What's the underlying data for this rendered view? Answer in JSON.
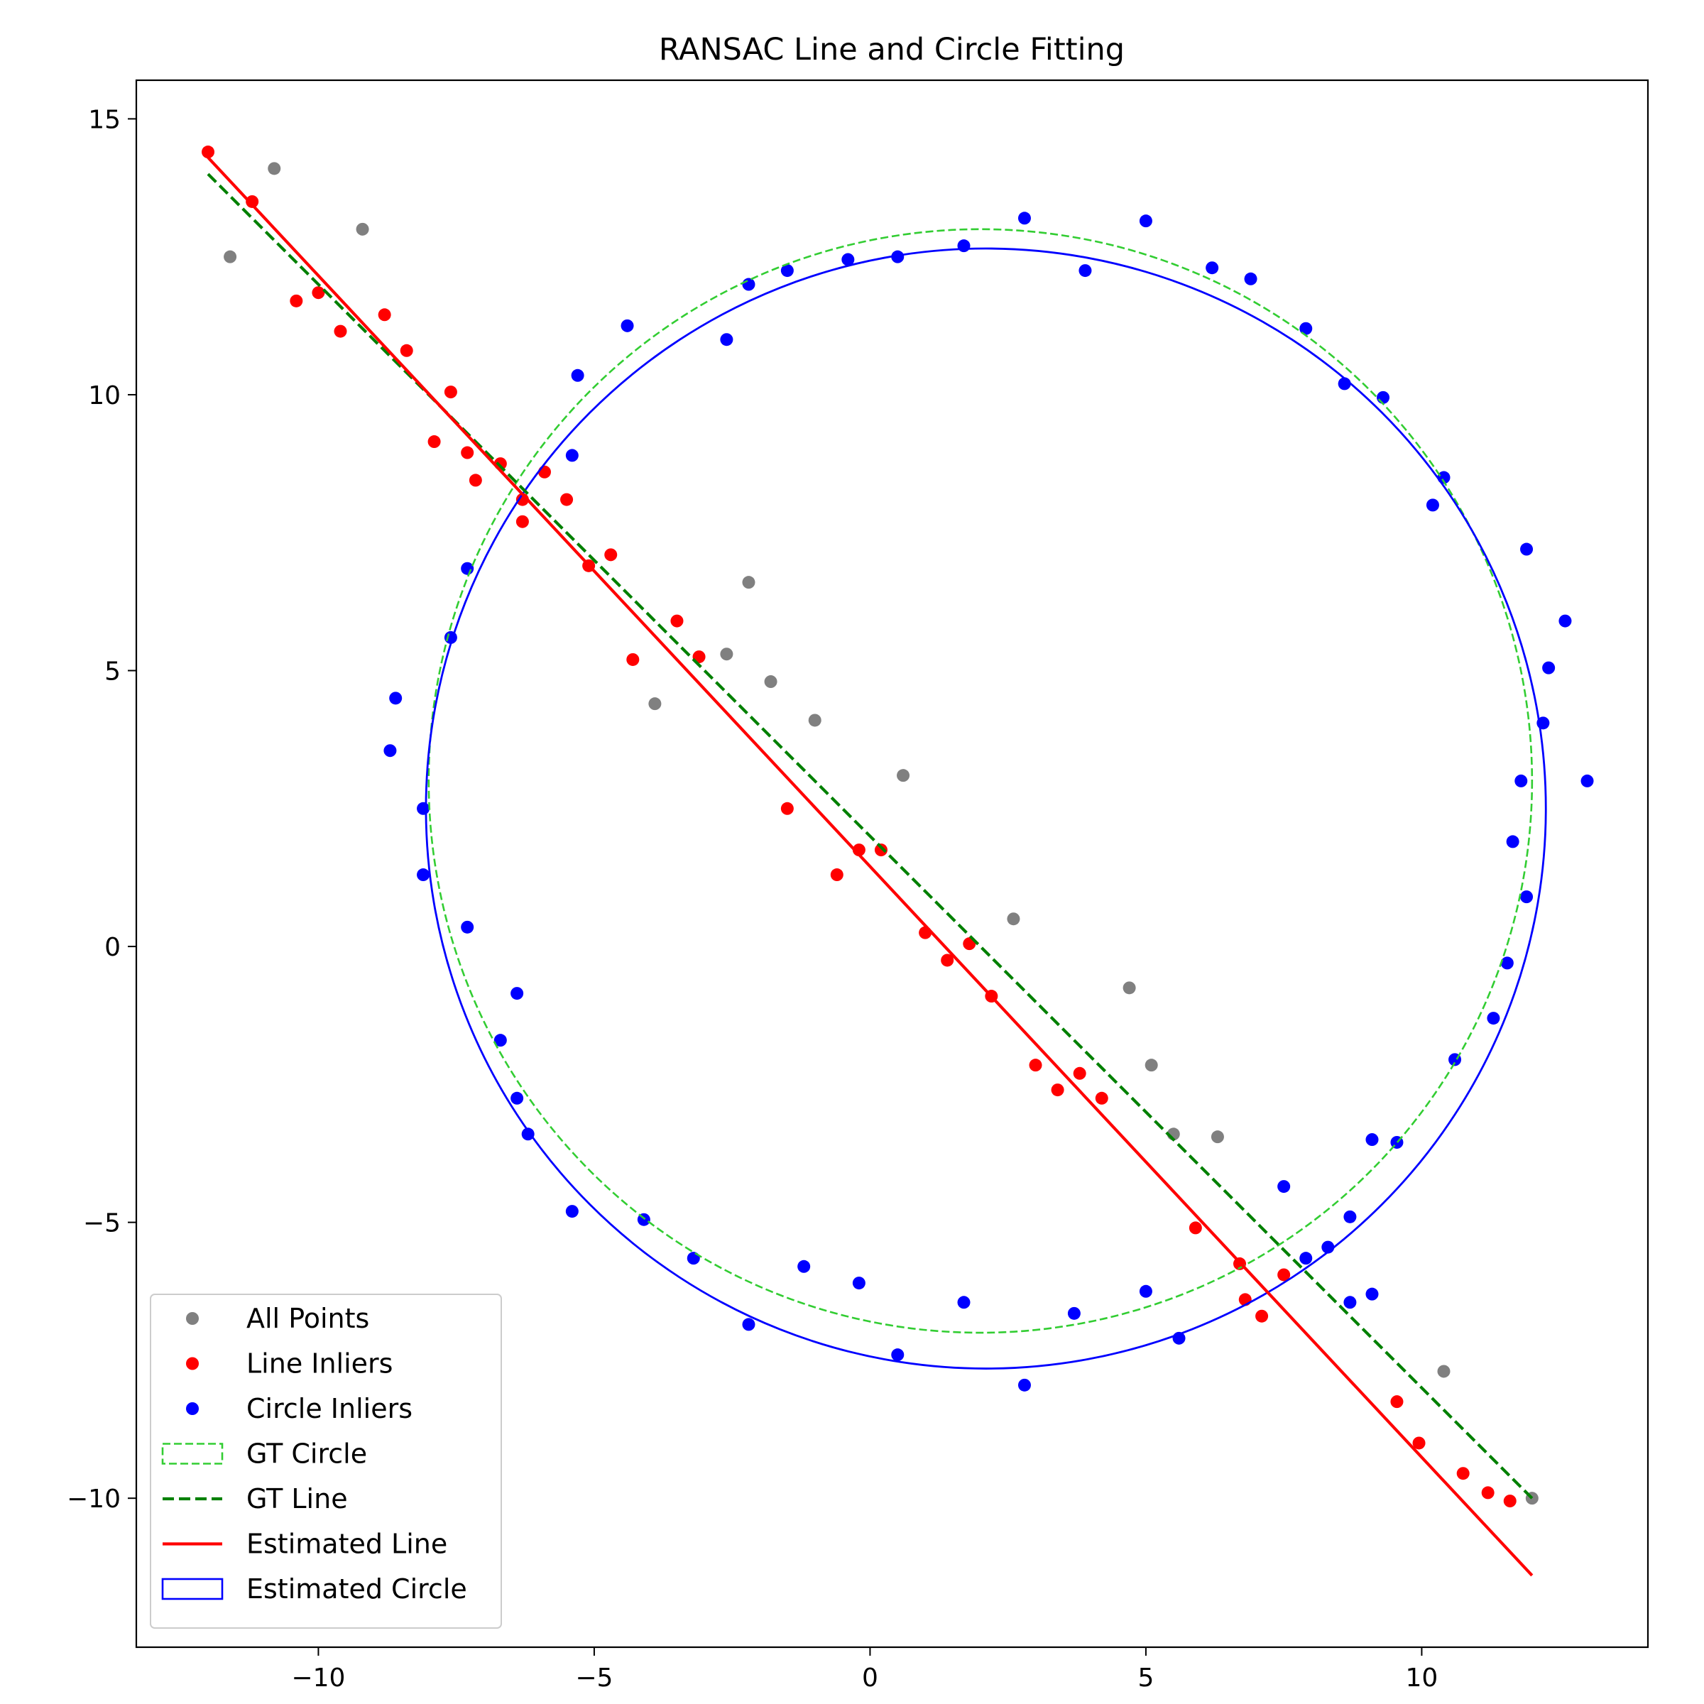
{
  "chart_data": {
    "type": "scatter",
    "title": "RANSAC Line and Circle Fitting",
    "xlabel": "",
    "ylabel": "",
    "xlim": [
      -13.3,
      14.1
    ],
    "ylim": [
      -12.7,
      15.7
    ],
    "xticks": [
      -10,
      -5,
      0,
      5,
      10
    ],
    "xtick_labels": [
      "−10",
      "−5",
      "0",
      "5",
      "10"
    ],
    "yticks": [
      15,
      10,
      5,
      0,
      -5,
      -10
    ],
    "ytick_labels": [
      "15",
      "10",
      "5",
      "0",
      "−5",
      "−10"
    ],
    "grid": false,
    "legend_position": "lower-left",
    "legend": [
      {
        "label": "All Points",
        "kind": "marker",
        "color": "#808080"
      },
      {
        "label": "Line Inliers",
        "kind": "marker",
        "color": "#ff0000"
      },
      {
        "label": "Circle Inliers",
        "kind": "marker",
        "color": "#0000ff"
      },
      {
        "label": "GT Circle",
        "kind": "patch-dashed",
        "color": "#32cd32"
      },
      {
        "label": "GT Line",
        "kind": "line-dashed",
        "color": "#008000"
      },
      {
        "label": "Estimated Line",
        "kind": "line",
        "color": "#ff0000"
      },
      {
        "label": "Estimated Circle",
        "kind": "patch",
        "color": "#0000ff"
      }
    ],
    "series": [
      {
        "name": "All Points",
        "color": "#808080",
        "points": [
          [
            -10.8,
            14.1
          ],
          [
            -11.6,
            12.5
          ],
          [
            -9.2,
            13.0
          ],
          [
            -2.6,
            5.3
          ],
          [
            -2.2,
            6.6
          ],
          [
            -3.9,
            4.4
          ],
          [
            -1.8,
            4.8
          ],
          [
            -1.0,
            4.1
          ],
          [
            0.6,
            3.1
          ],
          [
            2.6,
            0.5
          ],
          [
            4.7,
            -0.75
          ],
          [
            5.1,
            -2.15
          ],
          [
            5.5,
            -3.4
          ],
          [
            6.3,
            -3.45
          ],
          [
            10.4,
            -7.7
          ],
          [
            12.0,
            -10.0
          ]
        ]
      },
      {
        "name": "Line Inliers",
        "color": "#ff0000",
        "points": [
          [
            -12.0,
            14.4
          ],
          [
            -11.2,
            13.5
          ],
          [
            -10.4,
            11.7
          ],
          [
            -10.0,
            11.85
          ],
          [
            -9.6,
            11.15
          ],
          [
            -8.8,
            11.45
          ],
          [
            -8.4,
            10.8
          ],
          [
            -7.6,
            10.05
          ],
          [
            -7.9,
            9.15
          ],
          [
            -7.3,
            8.95
          ],
          [
            -7.15,
            8.45
          ],
          [
            -6.7,
            8.75
          ],
          [
            -6.3,
            8.1
          ],
          [
            -6.3,
            7.7
          ],
          [
            -5.9,
            8.6
          ],
          [
            -5.5,
            8.1
          ],
          [
            -5.1,
            6.9
          ],
          [
            -4.7,
            7.1
          ],
          [
            -4.3,
            5.2
          ],
          [
            -3.5,
            5.9
          ],
          [
            -3.1,
            5.25
          ],
          [
            -1.5,
            2.5
          ],
          [
            -0.6,
            1.3
          ],
          [
            -0.2,
            1.75
          ],
          [
            0.2,
            1.75
          ],
          [
            1.0,
            0.25
          ],
          [
            1.4,
            -0.25
          ],
          [
            1.8,
            0.05
          ],
          [
            2.2,
            -0.9
          ],
          [
            3.0,
            -2.15
          ],
          [
            3.4,
            -2.6
          ],
          [
            3.8,
            -2.3
          ],
          [
            4.2,
            -2.75
          ],
          [
            5.9,
            -5.1
          ],
          [
            6.7,
            -5.75
          ],
          [
            6.8,
            -6.4
          ],
          [
            7.1,
            -6.7
          ],
          [
            7.5,
            -5.95
          ],
          [
            9.55,
            -8.25
          ],
          [
            9.95,
            -9.0
          ],
          [
            10.75,
            -9.55
          ],
          [
            11.2,
            -9.9
          ],
          [
            11.6,
            -10.05
          ]
        ]
      },
      {
        "name": "Circle Inliers",
        "color": "#0000ff",
        "points": [
          [
            2.8,
            13.2
          ],
          [
            5.0,
            13.15
          ],
          [
            1.7,
            12.7
          ],
          [
            0.5,
            12.5
          ],
          [
            -0.4,
            12.45
          ],
          [
            -1.5,
            12.25
          ],
          [
            -2.2,
            12.0
          ],
          [
            3.9,
            12.25
          ],
          [
            6.2,
            12.3
          ],
          [
            6.9,
            12.1
          ],
          [
            7.9,
            11.2
          ],
          [
            8.6,
            10.2
          ],
          [
            9.3,
            9.95
          ],
          [
            -4.4,
            11.25
          ],
          [
            -2.6,
            11.0
          ],
          [
            -5.3,
            10.35
          ],
          [
            -5.4,
            8.9
          ],
          [
            10.4,
            8.5
          ],
          [
            10.2,
            8.0
          ],
          [
            -7.3,
            6.85
          ],
          [
            -7.6,
            5.6
          ],
          [
            -8.6,
            4.5
          ],
          [
            -8.7,
            3.55
          ],
          [
            11.9,
            7.2
          ],
          [
            12.6,
            5.9
          ],
          [
            12.3,
            5.05
          ],
          [
            12.2,
            4.05
          ],
          [
            11.8,
            3.0
          ],
          [
            13.0,
            3.0
          ],
          [
            -8.1,
            2.5
          ],
          [
            -8.1,
            1.3
          ],
          [
            -7.3,
            0.35
          ],
          [
            11.65,
            1.9
          ],
          [
            11.9,
            0.9
          ],
          [
            11.55,
            -0.3
          ],
          [
            -6.4,
            -0.85
          ],
          [
            -6.7,
            -1.7
          ],
          [
            11.3,
            -1.3
          ],
          [
            10.6,
            -2.05
          ],
          [
            -6.4,
            -2.75
          ],
          [
            -6.2,
            -3.4
          ],
          [
            9.1,
            -3.5
          ],
          [
            9.55,
            -3.55
          ],
          [
            7.5,
            -4.35
          ],
          [
            -5.4,
            -4.8
          ],
          [
            -4.1,
            -4.95
          ],
          [
            8.7,
            -4.9
          ],
          [
            8.3,
            -5.45
          ],
          [
            7.9,
            -5.65
          ],
          [
            -3.2,
            -5.65
          ],
          [
            -1.2,
            -5.8
          ],
          [
            -0.2,
            -6.1
          ],
          [
            5.0,
            -6.25
          ],
          [
            9.1,
            -6.3
          ],
          [
            8.7,
            -6.45
          ],
          [
            1.7,
            -6.45
          ],
          [
            3.7,
            -6.65
          ],
          [
            -2.2,
            -6.85
          ],
          [
            5.6,
            -7.1
          ],
          [
            0.5,
            -7.4
          ],
          [
            2.8,
            -7.95
          ]
        ]
      }
    ],
    "lines": [
      {
        "name": "GT Line",
        "color": "#008000",
        "style": "dashed",
        "points": [
          [
            -12.0,
            14.0
          ],
          [
            12.0,
            -10.0
          ]
        ]
      },
      {
        "name": "Estimated Line",
        "color": "#ff0000",
        "style": "solid",
        "points": [
          [
            -12.0,
            14.3
          ],
          [
            12.0,
            -11.4
          ]
        ]
      }
    ],
    "circles": [
      {
        "name": "GT Circle",
        "color": "#32cd32",
        "style": "dashed",
        "center": [
          2.0,
          3.0
        ],
        "radius": 10.0
      },
      {
        "name": "Estimated Circle",
        "color": "#0000ff",
        "style": "solid",
        "center": [
          2.1,
          2.5
        ],
        "radius": 10.15
      }
    ]
  }
}
